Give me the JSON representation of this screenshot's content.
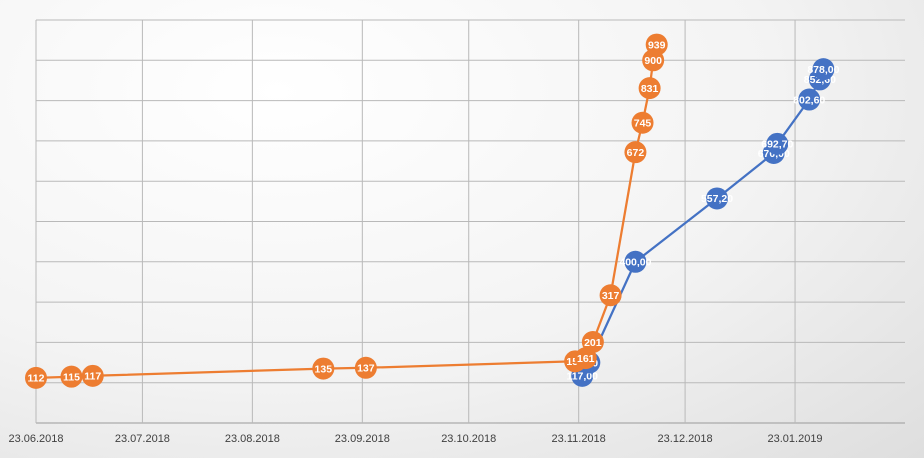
{
  "chart_data": {
    "type": "line",
    "title": "",
    "xlabel": "",
    "ylabel": "",
    "x_type": "date",
    "xlim": [
      "2018-06-23",
      "2019-02-23"
    ],
    "ylim": [
      0,
      1000
    ],
    "grid": {
      "vertical": true,
      "horizontal": true
    },
    "legend": "none",
    "x_tick_labels": [
      "23.06.2018",
      "23.07.2018",
      "23.08.2018",
      "23.09.2018",
      "23.10.2018",
      "23.11.2018",
      "23.12.2018",
      "23.01.2019"
    ],
    "x_ticks": [
      "2018-06-23",
      "2018-07-23",
      "2018-08-23",
      "2018-09-23",
      "2018-10-23",
      "2018-11-23",
      "2018-12-23",
      "2019-01-23"
    ],
    "series": [
      {
        "color": "#4472c4",
        "points": [
          {
            "x": "2018-11-24",
            "y": 117,
            "label": "117,00"
          },
          {
            "x": "2018-11-26",
            "y": 150,
            "label": "150"
          },
          {
            "x": "2018-12-09",
            "y": 400,
            "label": "400,00"
          },
          {
            "x": "2019-01-01",
            "y": 557.2,
            "label": "557,20"
          },
          {
            "x": "2019-01-17",
            "y": 670,
            "label": "670,00"
          },
          {
            "x": "2019-01-18",
            "y": 692.7,
            "label": "692,70"
          },
          {
            "x": "2019-01-27",
            "y": 802.6,
            "label": "802,60"
          },
          {
            "x": "2019-01-30",
            "y": 852.6,
            "label": "852,60"
          },
          {
            "x": "2019-01-31",
            "y": 878,
            "label": "878,00"
          }
        ]
      },
      {
        "color": "#ed7d31",
        "points": [
          {
            "x": "2018-06-23",
            "y": 112,
            "label": "112"
          },
          {
            "x": "2018-07-03",
            "y": 115,
            "label": "115"
          },
          {
            "x": "2018-07-09",
            "y": 117,
            "label": "117"
          },
          {
            "x": "2018-09-12",
            "y": 135,
            "label": "135"
          },
          {
            "x": "2018-09-24",
            "y": 137,
            "label": "137"
          },
          {
            "x": "2018-11-22",
            "y": 153,
            "label": "153"
          },
          {
            "x": "2018-11-25",
            "y": 161,
            "label": "161"
          },
          {
            "x": "2018-11-27",
            "y": 201,
            "label": "201"
          },
          {
            "x": "2018-12-02",
            "y": 317,
            "label": "317"
          },
          {
            "x": "2018-12-09",
            "y": 672,
            "label": "672"
          },
          {
            "x": "2018-12-11",
            "y": 745,
            "label": "745"
          },
          {
            "x": "2018-12-13",
            "y": 831,
            "label": "831"
          },
          {
            "x": "2018-12-14",
            "y": 900,
            "label": "900"
          },
          {
            "x": "2018-12-15",
            "y": 939,
            "label": "939"
          }
        ]
      }
    ]
  }
}
